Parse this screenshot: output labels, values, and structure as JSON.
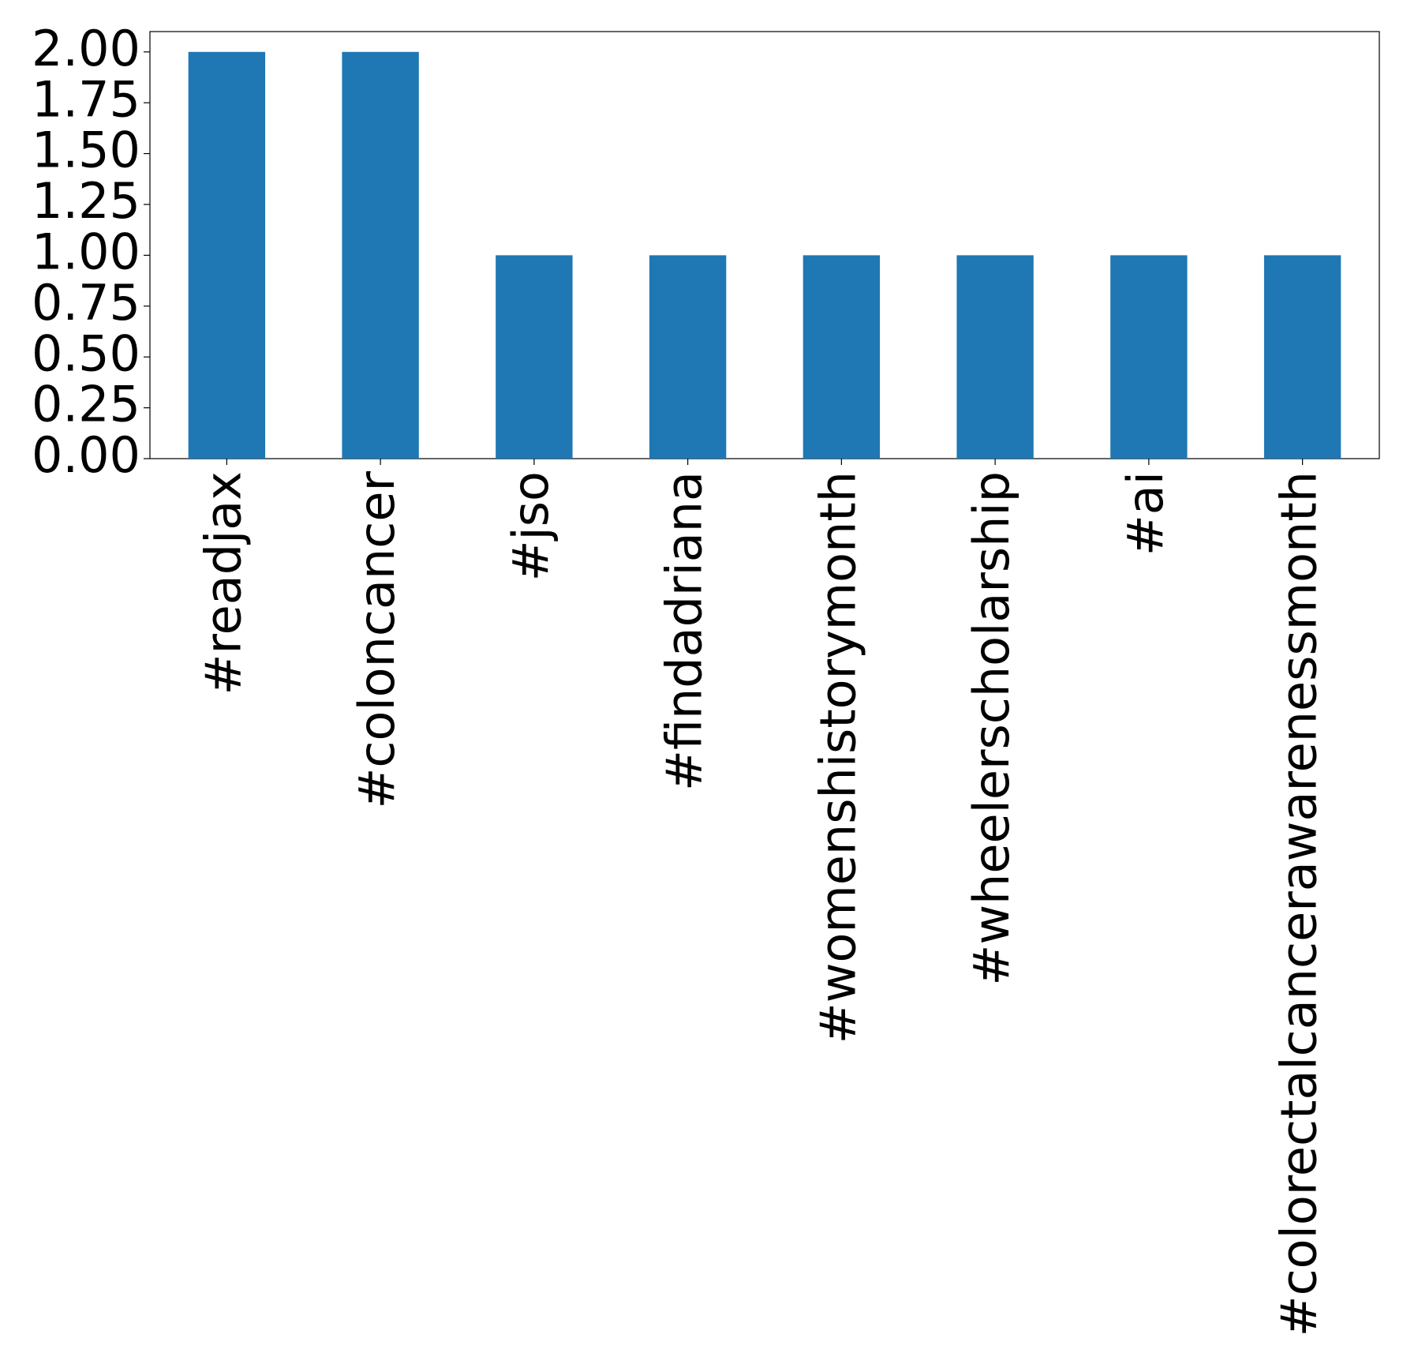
{
  "chart_data": {
    "type": "bar",
    "categories": [
      "#readjax",
      "#coloncancer",
      "#jso",
      "#findadriana",
      "#womenshistorymonth",
      "#wheelerscholarship",
      "#ai",
      "#colorectalcancerawarenessmonth"
    ],
    "values": [
      2,
      2,
      1,
      1,
      1,
      1,
      1,
      1
    ],
    "color": "#1f77b4",
    "ylim": [
      0,
      2.1
    ],
    "yticks": [
      {
        "value": 0,
        "label": "0.00"
      },
      {
        "value": 0.25,
        "label": "0.25"
      },
      {
        "value": 0.5,
        "label": "0.50"
      },
      {
        "value": 0.75,
        "label": "0.75"
      },
      {
        "value": 1,
        "label": "1.00"
      },
      {
        "value": 1.25,
        "label": "1.25"
      },
      {
        "value": 1.5,
        "label": "1.50"
      },
      {
        "value": 1.75,
        "label": "1.75"
      },
      {
        "value": 2,
        "label": "2.00"
      }
    ],
    "grid": false
  }
}
